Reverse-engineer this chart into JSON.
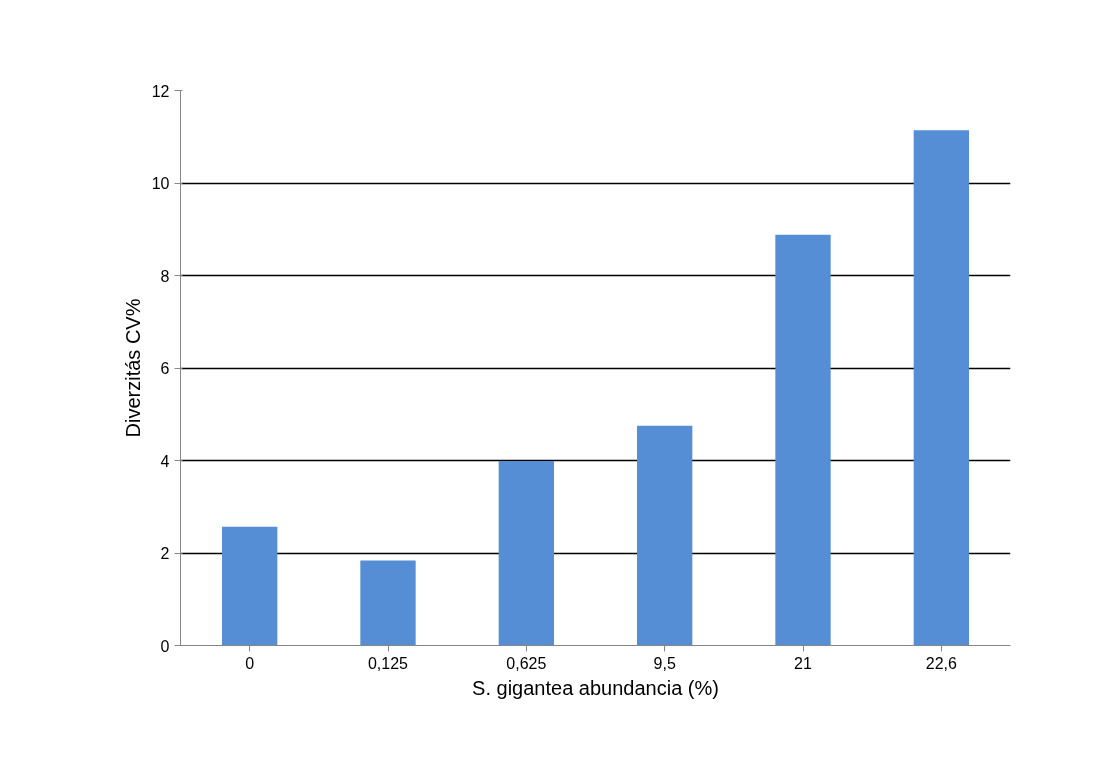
{
  "chart_data": {
    "type": "bar",
    "xlabel": "S. gigantea abundancia (%)",
    "ylabel": "Diverzitás CV%",
    "categories": [
      "0",
      "0,125",
      "0,625",
      "9,5",
      "21",
      "22,6"
    ],
    "values": [
      2.57,
      1.84,
      3.99,
      4.75,
      8.88,
      11.14
    ],
    "color": "#558ed5",
    "ylim": [
      0,
      12
    ],
    "yticks": [
      0,
      2,
      4,
      6,
      8,
      10,
      12
    ],
    "grid": "y"
  }
}
